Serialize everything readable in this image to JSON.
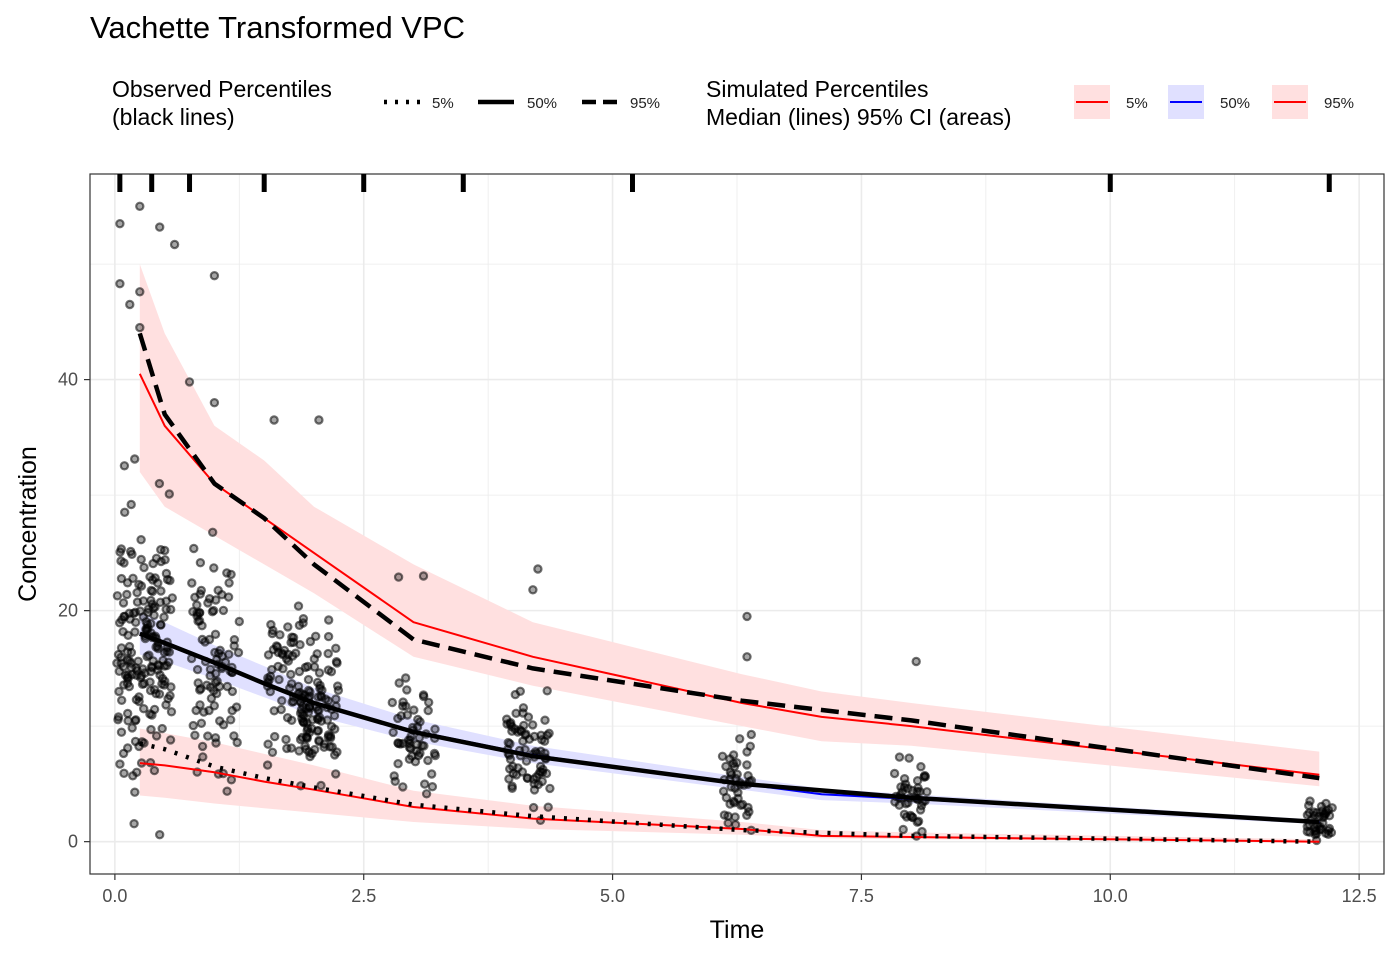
{
  "chart_data": {
    "type": "scatter",
    "title": "Vachette Transformed VPC",
    "xlabel": "Time",
    "ylabel": "Concentration",
    "xlim": [
      -0.25,
      12.75
    ],
    "ylim": [
      -2.8,
      57.8
    ],
    "x_ticks": [
      0.0,
      2.5,
      5.0,
      7.5,
      10.0,
      12.5
    ],
    "x_tick_labels": [
      "0.0",
      "2.5",
      "5.0",
      "7.5",
      "10.0",
      "12.5"
    ],
    "y_ticks": [
      0,
      20,
      40
    ],
    "y_tick_labels": [
      "0",
      "20",
      "40"
    ],
    "grid": true,
    "legend_position": "top",
    "colors": {
      "observed": "#000000",
      "sim_tail": "#ff0000",
      "sim_median": "#0000ff",
      "ci_tail": "#ffe0e0",
      "ci_median": "#e0e0ff",
      "panel_border": "#333333",
      "grid": "#ebebeb"
    },
    "legends": [
      {
        "title_lines": [
          "Observed Percentiles",
          "(black lines)"
        ],
        "entries": [
          {
            "label": "5%",
            "linetype": "dotted"
          },
          {
            "label": "50%",
            "linetype": "solid"
          },
          {
            "label": "95%",
            "linetype": "dashed"
          }
        ]
      },
      {
        "title_lines": [
          "Simulated Percentiles",
          "Median (lines) 95% CI (areas)"
        ],
        "entries": [
          {
            "label": "5%",
            "line_color": "#ff0000",
            "fill_color": "#ffe0e0"
          },
          {
            "label": "50%",
            "line_color": "#0000ff",
            "fill_color": "#e0e0ff"
          },
          {
            "label": "95%",
            "line_color": "#ff0000",
            "fill_color": "#ffe0e0"
          }
        ]
      }
    ],
    "bin_edges": [
      0.05,
      0.37,
      0.75,
      1.5,
      2.5,
      3.5,
      5.2,
      10.0,
      12.2
    ],
    "observed_percentiles": {
      "x": [
        0.25,
        0.5,
        1.0,
        1.5,
        2.0,
        3.0,
        4.2,
        6.3,
        8.0,
        12.1
      ],
      "p5": [
        8.5,
        8.0,
        6.5,
        5.5,
        4.7,
        3.2,
        2.2,
        1.0,
        0.5,
        0.0
      ],
      "p50": [
        18.0,
        17.2,
        15.5,
        13.7,
        12.0,
        9.5,
        7.4,
        5.0,
        3.8,
        1.7
      ],
      "p95": [
        44.0,
        37.0,
        31.0,
        28.0,
        24.0,
        17.5,
        15.0,
        12.2,
        10.5,
        5.5
      ]
    },
    "simulated_percentiles": {
      "x": [
        0.25,
        0.5,
        1.0,
        1.5,
        2.0,
        3.0,
        4.2,
        6.3,
        7.1,
        8.0,
        12.1
      ],
      "p5": [
        6.8,
        6.6,
        6.0,
        5.2,
        4.5,
        3.0,
        2.0,
        1.1,
        0.5,
        0.4,
        0.0
      ],
      "p50": [
        18.0,
        17.3,
        15.5,
        13.8,
        12.0,
        9.6,
        7.5,
        5.0,
        4.1,
        3.7,
        1.7
      ],
      "p95": [
        40.5,
        36.0,
        31.0,
        28.0,
        25.0,
        19.0,
        16.0,
        12.0,
        10.8,
        10.0,
        5.8
      ]
    },
    "simulated_ci": {
      "x": [
        0.25,
        0.5,
        1.0,
        1.5,
        2.0,
        3.0,
        4.2,
        6.3,
        7.1,
        8.0,
        12.1
      ],
      "p5_lower": [
        4.0,
        3.8,
        3.3,
        2.9,
        2.5,
        1.7,
        1.1,
        0.6,
        0.3,
        0.2,
        0.0
      ],
      "p5_upper": [
        9.8,
        9.4,
        8.6,
        7.6,
        6.6,
        4.4,
        3.1,
        1.7,
        1.0,
        0.8,
        0.2
      ],
      "p50_lower": [
        16.2,
        15.6,
        14.1,
        12.5,
        10.9,
        8.7,
        6.8,
        4.5,
        3.6,
        3.3,
        1.5
      ],
      "p50_upper": [
        19.8,
        19.0,
        17.0,
        15.2,
        13.3,
        10.6,
        8.3,
        5.6,
        4.6,
        4.1,
        1.9
      ],
      "p95_lower": [
        32.0,
        29.0,
        26.5,
        24.0,
        21.5,
        16.0,
        13.5,
        10.0,
        8.7,
        8.3,
        4.8
      ],
      "p95_upper": [
        50.0,
        44.0,
        36.0,
        33.0,
        29.0,
        24.0,
        19.0,
        14.5,
        13.0,
        12.0,
        7.8
      ]
    },
    "observed_clusters": [
      {
        "x_center": 0.3,
        "x_spread": 0.28,
        "n": 190
      },
      {
        "x_center": 1.0,
        "x_spread": 0.25,
        "n": 95
      },
      {
        "x_center": 1.75,
        "x_spread": 0.22,
        "n": 75
      },
      {
        "x_center": 2.05,
        "x_spread": 0.2,
        "n": 85
      },
      {
        "x_center": 3.0,
        "x_spread": 0.22,
        "n": 55
      },
      {
        "x_center": 4.15,
        "x_spread": 0.22,
        "n": 75
      },
      {
        "x_center": 6.25,
        "x_spread": 0.15,
        "n": 45
      },
      {
        "x_center": 8.0,
        "x_spread": 0.17,
        "n": 45
      },
      {
        "x_center": 12.1,
        "x_spread": 0.13,
        "n": 40
      }
    ],
    "observed_highlighted_points": [
      {
        "x": 0.05,
        "y": 53.5
      },
      {
        "x": 0.15,
        "y": 46.5
      },
      {
        "x": 0.25,
        "y": 55.0
      },
      {
        "x": 0.45,
        "y": 53.2
      },
      {
        "x": 0.6,
        "y": 51.7
      },
      {
        "x": 1.0,
        "y": 49.0
      },
      {
        "x": 0.05,
        "y": 48.3
      },
      {
        "x": 0.25,
        "y": 47.6
      },
      {
        "x": 0.25,
        "y": 44.5
      },
      {
        "x": 0.75,
        "y": 39.8
      },
      {
        "x": 1.0,
        "y": 38.0
      },
      {
        "x": 1.6,
        "y": 36.5
      },
      {
        "x": 2.05,
        "y": 36.5
      },
      {
        "x": 0.45,
        "y": 0.6
      },
      {
        "x": 4.25,
        "y": 23.6
      },
      {
        "x": 4.2,
        "y": 21.8
      },
      {
        "x": 6.35,
        "y": 19.5
      },
      {
        "x": 6.35,
        "y": 16.0
      },
      {
        "x": 8.05,
        "y": 15.6
      },
      {
        "x": 3.1,
        "y": 23.0
      },
      {
        "x": 2.85,
        "y": 22.9
      }
    ]
  }
}
